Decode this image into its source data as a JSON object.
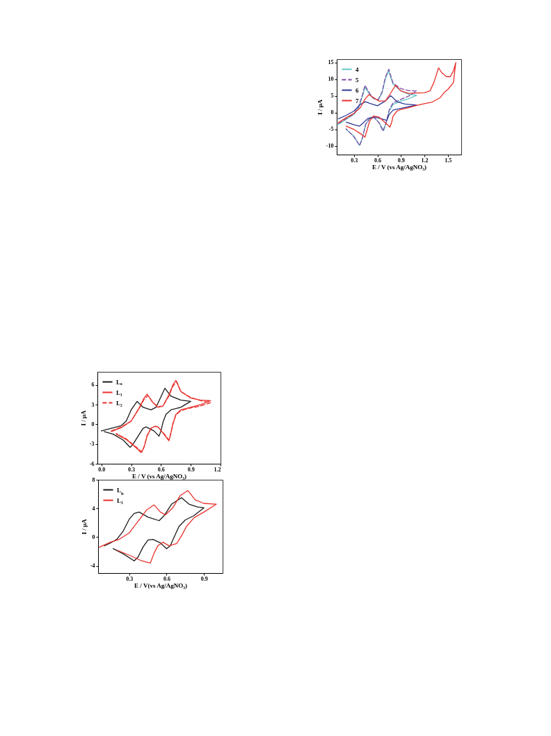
{
  "chart_data": [
    {
      "type": "line",
      "xlabel": "E / V (vs Ag/AgNO₃)",
      "ylabel": "I / μA",
      "xlim": [
        -0.04,
        1.2
      ],
      "ylim": [
        -6,
        8
      ],
      "xticks": [
        {
          "value": 0,
          "label": "0.0"
        },
        0.3,
        0.6,
        0.9,
        1.2
      ],
      "yticks": [
        -6,
        -3,
        0,
        3,
        6
      ],
      "grid": false,
      "legend": "top left",
      "series": [
        {
          "name": "Lₐ",
          "color": "#1a1a1a",
          "line_style": "solid",
          "x": [
            0.0,
            0.1,
            0.2,
            0.25,
            0.3,
            0.36,
            0.42,
            0.5,
            0.55,
            0.6,
            0.64,
            0.7,
            0.8,
            0.9,
            0.8,
            0.7,
            0.65,
            0.62,
            0.6,
            0.58,
            0.53,
            0.45,
            0.42,
            0.37,
            0.32,
            0.29,
            0.22,
            0.12,
            0.03
          ],
          "values": [
            -1.0,
            -0.6,
            -0.2,
            0.5,
            2.2,
            3.5,
            2.6,
            2.2,
            2.6,
            4.2,
            5.5,
            4.3,
            3.7,
            3.5,
            2.6,
            2.2,
            1.5,
            0.3,
            -1.0,
            -1.8,
            -1.0,
            -0.4,
            -0.6,
            -1.8,
            -3.0,
            -3.5,
            -2.4,
            -1.5,
            -1.1
          ]
        },
        {
          "name": "L₁",
          "color": "#e8302a",
          "line_style": "solid",
          "x": [
            0.1,
            0.2,
            0.3,
            0.38,
            0.43,
            0.46,
            0.52,
            0.57,
            0.62,
            0.68,
            0.72,
            0.75,
            0.8,
            0.9,
            1.0,
            1.1,
            1.0,
            0.9,
            0.8,
            0.75,
            0.72,
            0.69,
            0.68,
            0.63,
            0.57,
            0.54,
            0.5,
            0.46,
            0.43,
            0.4,
            0.33,
            0.25,
            0.15
          ],
          "values": [
            -1.1,
            -0.5,
            0.5,
            2.5,
            4.0,
            4.6,
            3.3,
            2.6,
            2.8,
            4.5,
            6.0,
            6.7,
            5.0,
            4.0,
            3.7,
            3.6,
            3.0,
            2.6,
            2.2,
            1.5,
            0.0,
            -2.0,
            -2.5,
            -1.5,
            -0.4,
            -0.3,
            -0.6,
            -1.8,
            -3.5,
            -4.3,
            -3.3,
            -2.3,
            -1.5
          ]
        },
        {
          "name": "L₂",
          "color": "#e8302a",
          "line_style": "dashed",
          "x": [
            0.1,
            0.2,
            0.3,
            0.38,
            0.43,
            0.47,
            0.52,
            0.57,
            0.62,
            0.68,
            0.72,
            0.76,
            0.8,
            0.9,
            1.0,
            1.1,
            1.0,
            0.9,
            0.8,
            0.75,
            0.72,
            0.69,
            0.68,
            0.63,
            0.57,
            0.54,
            0.5,
            0.46,
            0.43,
            0.41,
            0.33,
            0.25,
            0.15
          ],
          "values": [
            -1.0,
            -0.4,
            0.5,
            2.4,
            3.8,
            4.4,
            3.3,
            2.7,
            2.8,
            4.3,
            5.8,
            6.5,
            5.0,
            4.1,
            3.6,
            3.3,
            2.8,
            2.5,
            2.1,
            1.4,
            0.1,
            -1.9,
            -2.4,
            -1.4,
            -0.4,
            -0.3,
            -0.6,
            -1.7,
            -3.4,
            -4.2,
            -3.2,
            -2.2,
            -1.4
          ]
        }
      ]
    },
    {
      "type": "line",
      "xlabel": "E / V(vs Ag/AgNO₃)",
      "ylabel": "I / μA",
      "xlim": [
        0.05,
        1.05
      ],
      "ylim": [
        -5,
        8
      ],
      "xticks": [
        0.3,
        0.6,
        0.9
      ],
      "yticks": [
        -4,
        0,
        4,
        8
      ],
      "grid": false,
      "legend": "top left",
      "series": [
        {
          "name": "L$_{b}$",
          "color": "#1a1a1a",
          "line_style": "solid",
          "x": [
            0.1,
            0.15,
            0.2,
            0.25,
            0.3,
            0.34,
            0.38,
            0.45,
            0.54,
            0.58,
            0.64,
            0.72,
            0.78,
            0.85,
            0.9,
            0.82,
            0.75,
            0.7,
            0.66,
            0.63,
            0.6,
            0.55,
            0.49,
            0.45,
            0.41,
            0.37,
            0.34,
            0.25,
            0.17
          ],
          "values": [
            -1.2,
            -0.8,
            -0.3,
            0.8,
            2.5,
            3.3,
            3.5,
            2.8,
            2.3,
            3.0,
            4.6,
            5.5,
            4.6,
            4.2,
            4.1,
            3.0,
            2.4,
            1.5,
            0.0,
            -1.2,
            -1.6,
            -0.8,
            -0.3,
            -0.4,
            -1.4,
            -2.8,
            -3.3,
            -2.3,
            -1.6
          ]
        },
        {
          "name": "L₃",
          "color": "#e8302a",
          "line_style": "solid",
          "x": [
            0.06,
            0.15,
            0.22,
            0.3,
            0.37,
            0.44,
            0.5,
            0.55,
            0.59,
            0.65,
            0.71,
            0.77,
            0.83,
            0.9,
            1.0,
            0.9,
            0.82,
            0.76,
            0.72,
            0.68,
            0.62,
            0.57,
            0.53,
            0.5,
            0.47,
            0.4,
            0.3,
            0.2
          ],
          "values": [
            -1.4,
            -0.7,
            -0.3,
            0.6,
            2.2,
            3.8,
            4.5,
            3.5,
            3.1,
            4.1,
            5.8,
            6.5,
            5.2,
            4.7,
            4.6,
            3.5,
            2.7,
            1.5,
            0.2,
            -0.9,
            -1.2,
            -0.7,
            -1.2,
            -2.2,
            -3.6,
            -3.3,
            -2.5,
            -1.8
          ]
        }
      ]
    },
    {
      "type": "line",
      "xlabel": "E / V (vs Ag/AgNO₃)",
      "ylabel": "I / μA",
      "xlim": [
        0.08,
        1.67
      ],
      "ylim": [
        -12.5,
        16
      ],
      "xticks": [
        0.3,
        0.6,
        0.9,
        1.2,
        1.5
      ],
      "yticks": [
        -10,
        -5,
        0,
        5,
        10,
        15
      ],
      "grid": false,
      "legend": "top left",
      "series": [
        {
          "name": "4",
          "color": "#5cc6c4",
          "line_style": "solid",
          "x": [
            0.1,
            0.2,
            0.3,
            0.36,
            0.41,
            0.44,
            0.5,
            0.55,
            0.61,
            0.66,
            0.7,
            0.74,
            0.8,
            0.9,
            1.0,
            1.1,
            1.0,
            0.9,
            0.8,
            0.75,
            0.71,
            0.68,
            0.62,
            0.56,
            0.5,
            0.45,
            0.41,
            0.37,
            0.3,
            0.2
          ],
          "values": [
            -3.5,
            -2.0,
            -0.5,
            1.5,
            5.0,
            7.6,
            5.5,
            4.2,
            3.8,
            6.0,
            10.0,
            12.5,
            8.5,
            6.5,
            5.5,
            5.2,
            4.2,
            3.5,
            2.5,
            0.5,
            -3.0,
            -5.3,
            -3.0,
            -1.5,
            -1.8,
            -3.5,
            -7.5,
            -9.8,
            -7.0,
            -5.0
          ]
        },
        {
          "name": "5",
          "color": "#7d4aa6",
          "line_style": "dashed",
          "x": [
            0.1,
            0.2,
            0.3,
            0.36,
            0.41,
            0.44,
            0.5,
            0.55,
            0.61,
            0.66,
            0.7,
            0.745,
            0.8,
            0.9,
            1.0,
            1.1,
            1.0,
            0.9,
            0.8,
            0.75,
            0.71,
            0.67,
            0.62,
            0.56,
            0.5,
            0.45,
            0.41,
            0.375,
            0.3,
            0.2
          ],
          "values": [
            -3.2,
            -1.8,
            -0.3,
            1.8,
            5.5,
            8.2,
            5.8,
            4.3,
            3.9,
            6.3,
            10.5,
            13.0,
            8.8,
            7.2,
            6.6,
            6.5,
            5.0,
            4.0,
            3.0,
            0.8,
            -3.0,
            -5.5,
            -3.0,
            -1.4,
            -1.7,
            -3.4,
            -7.3,
            -9.8,
            -7.2,
            -4.8
          ]
        },
        {
          "name": "6",
          "color": "#2f3896",
          "line_style": "solid",
          "x": [
            0.1,
            0.2,
            0.3,
            0.38,
            0.45,
            0.5,
            0.6,
            0.7,
            0.77,
            0.85,
            0.95,
            1.1,
            1.0,
            0.9,
            0.8,
            0.75,
            0.72,
            0.65,
            0.55,
            0.48,
            0.42,
            0.37,
            0.3,
            0.2
          ],
          "values": [
            -1.8,
            -0.8,
            0.5,
            2.5,
            3.3,
            2.8,
            2.1,
            3.5,
            5.1,
            3.3,
            2.6,
            2.3,
            1.8,
            1.3,
            0.8,
            -0.5,
            -2.3,
            -1.8,
            -1.2,
            -1.7,
            -3.0,
            -4.0,
            -3.6,
            -2.8
          ]
        },
        {
          "name": "7",
          "color": "#e8302a",
          "line_style": "solid",
          "x": [
            0.1,
            0.2,
            0.3,
            0.38,
            0.44,
            0.49,
            0.55,
            0.62,
            0.7,
            0.76,
            0.83,
            0.9,
            1.0,
            1.2,
            1.27,
            1.32,
            1.38,
            1.42,
            1.48,
            1.53,
            1.57,
            1.6,
            1.57,
            1.5,
            1.45,
            1.4,
            1.3,
            1.2,
            1.1,
            1.0,
            0.9,
            0.85,
            0.8,
            0.78,
            0.76,
            0.7,
            0.62,
            0.55,
            0.5,
            0.47,
            0.44,
            0.4,
            0.3,
            0.2
          ],
          "values": [
            -3.0,
            -1.5,
            -0.2,
            1.5,
            4.0,
            5.4,
            4.5,
            3.5,
            3.5,
            5.5,
            8.2,
            6.5,
            5.8,
            6.0,
            6.5,
            9.0,
            13.4,
            12.0,
            10.8,
            10.8,
            12.5,
            15.0,
            9.0,
            7.0,
            6.0,
            4.5,
            3.2,
            2.7,
            2.2,
            1.5,
            1.0,
            0.5,
            -1.0,
            -3.0,
            -4.3,
            -3.0,
            -1.3,
            -1.0,
            -2.5,
            -5.0,
            -7.3,
            -6.5,
            -5.0,
            -4.0
          ]
        }
      ]
    }
  ]
}
